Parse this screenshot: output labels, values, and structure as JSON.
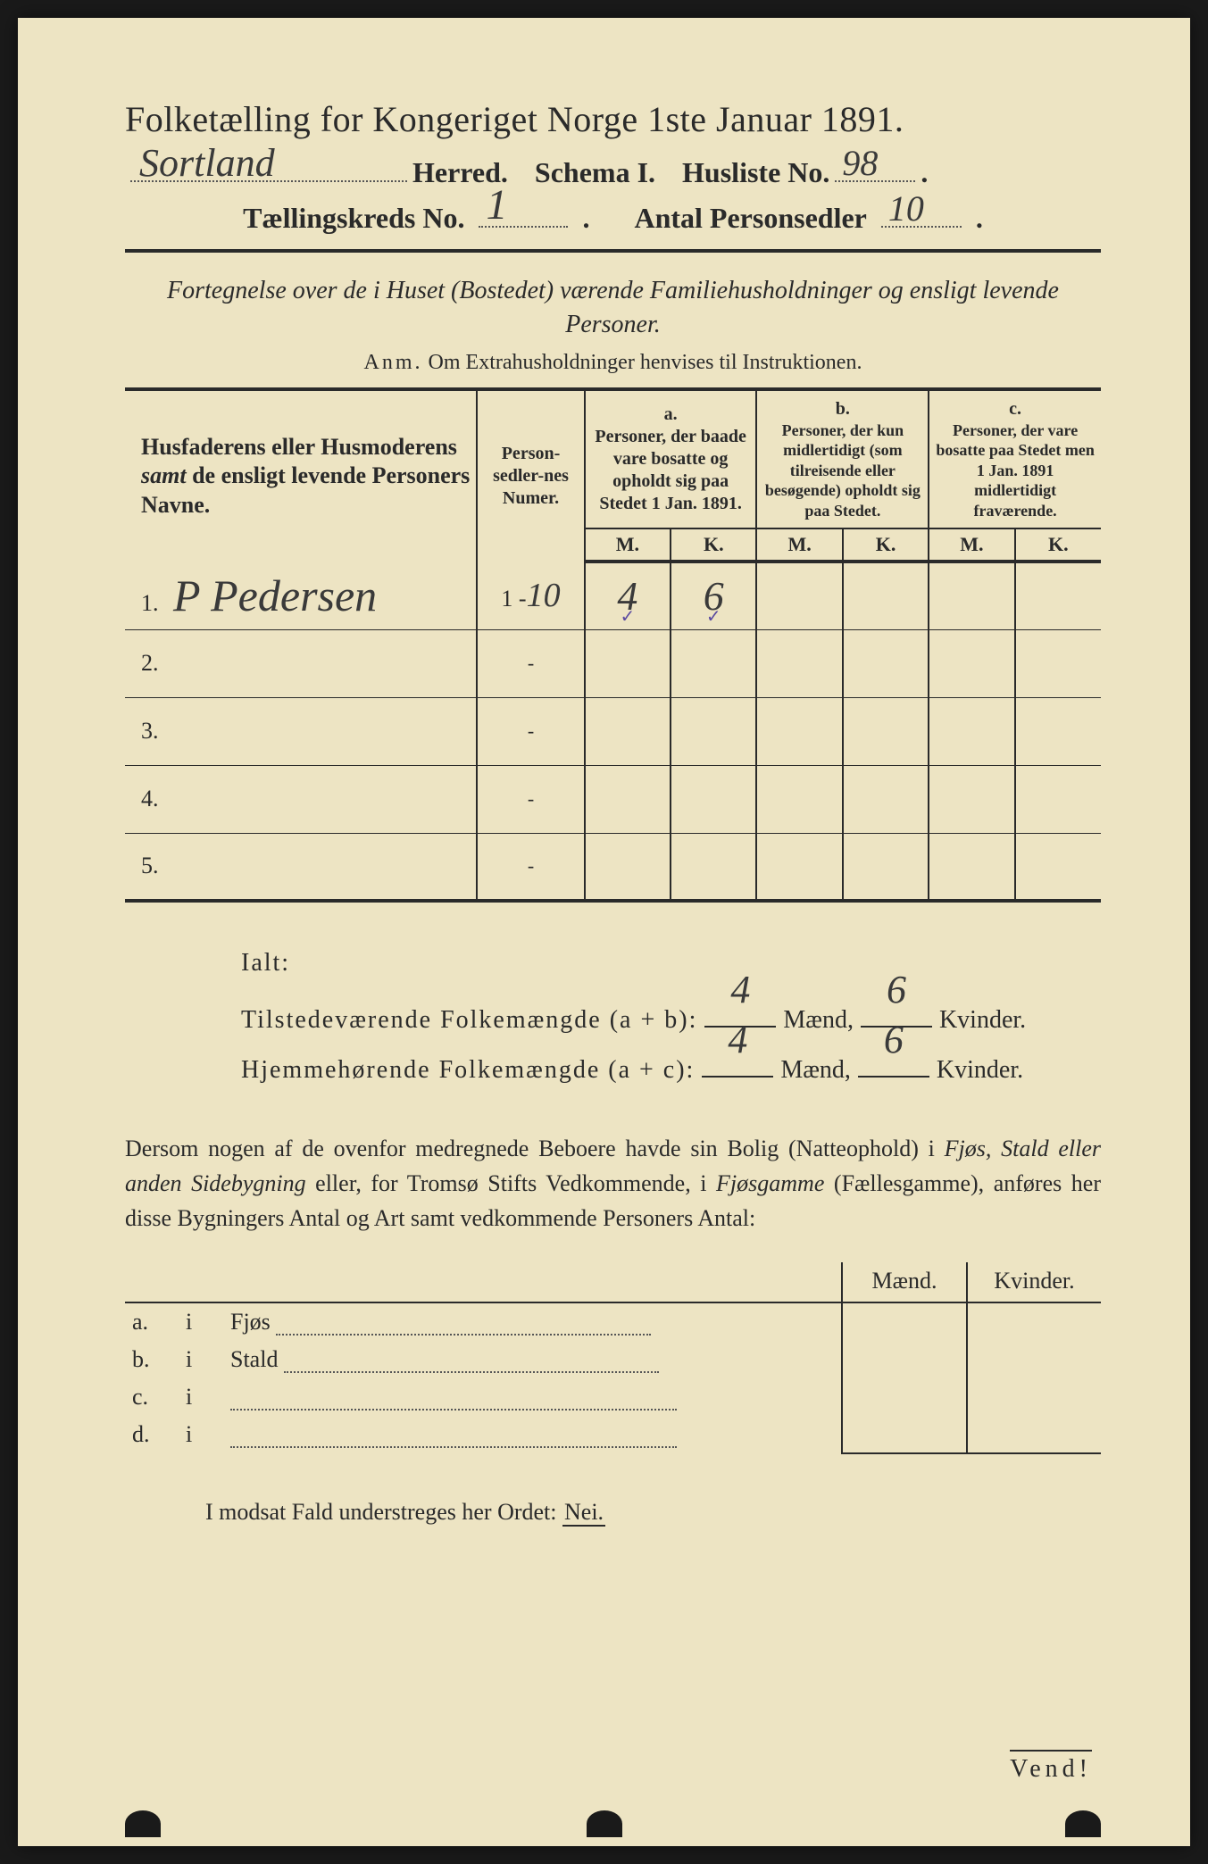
{
  "colors": {
    "paper": "#ede4c3",
    "ink": "#2a2a2a",
    "handwriting": "#3a3a3a",
    "tick": "#5a4aa0",
    "background": "#1a1a1a"
  },
  "header": {
    "title": "Folketælling for Kongeriget Norge 1ste Januar 1891.",
    "herred_hw": "Sortland",
    "herred_label": "Herred.",
    "schema_label": "Schema I.",
    "husliste_label": "Husliste No.",
    "husliste_hw": "98",
    "kreds_label": "Tællingskreds No.",
    "kreds_hw": "1",
    "antal_label": "Antal Personsedler",
    "antal_hw": "10"
  },
  "subtitle": {
    "line": "Fortegnelse over de i Huset (Bostedet) værende Familiehusholdninger og ensligt levende Personer.",
    "anm_prefix": "Anm.",
    "anm_text": "Om Extrahusholdninger henvises til Instruktionen."
  },
  "table": {
    "col1": "Husfaderens eller Husmoderens samt de ensligt levende Personers Navne.",
    "col2": "Person-sedler-nes Numer.",
    "col_a_label": "a.",
    "col_a": "Personer, der baade vare bosatte og opholdt sig paa Stedet 1 Jan. 1891.",
    "col_b_label": "b.",
    "col_b": "Personer, der kun midlertidigt (som tilreisende eller besøgende) opholdt sig paa Stedet.",
    "col_c_label": "c.",
    "col_c": "Personer, der vare bosatte paa Stedet men 1 Jan. 1891 midlertidigt fraværende.",
    "m": "M.",
    "k": "K.",
    "rows": [
      {
        "num": "1.",
        "name": "P Pedersen",
        "range": "1 - 10",
        "a_m": "4",
        "a_k": "6",
        "b_m": "",
        "b_k": "",
        "c_m": "",
        "c_k": "",
        "tick": true
      },
      {
        "num": "2.",
        "name": "",
        "range": "-",
        "a_m": "",
        "a_k": "",
        "b_m": "",
        "b_k": "",
        "c_m": "",
        "c_k": ""
      },
      {
        "num": "3.",
        "name": "",
        "range": "-",
        "a_m": "",
        "a_k": "",
        "b_m": "",
        "b_k": "",
        "c_m": "",
        "c_k": ""
      },
      {
        "num": "4.",
        "name": "",
        "range": "-",
        "a_m": "",
        "a_k": "",
        "b_m": "",
        "b_k": "",
        "c_m": "",
        "c_k": ""
      },
      {
        "num": "5.",
        "name": "",
        "range": "-",
        "a_m": "",
        "a_k": "",
        "b_m": "",
        "b_k": "",
        "c_m": "",
        "c_k": ""
      }
    ]
  },
  "totals": {
    "ialt": "Ialt:",
    "row1_label": "Tilstedeværende Folkemængde (a + b):",
    "row1_m": "4",
    "row1_k": "6",
    "row2_label": "Hjemmehørende Folkemængde (a + c):",
    "row2_m": "4",
    "row2_k": "6",
    "maend": "Mænd,",
    "kvinder": "Kvinder."
  },
  "paragraph": "Dersom nogen af de ovenfor medregnede Beboere havde sin Bolig (Natteophold) i Fjøs, Stald eller anden Sidebygning eller, for Tromsø Stifts Vedkommende, i Fjøsgamme (Fællesgamme), anføres her disse Bygningers Antal og Art samt vedkommende Personers Antal:",
  "lower_table": {
    "maend": "Mænd.",
    "kvinder": "Kvinder.",
    "rows": [
      {
        "letter": "a.",
        "i": "i",
        "label": "Fjøs"
      },
      {
        "letter": "b.",
        "i": "i",
        "label": "Stald"
      },
      {
        "letter": "c.",
        "i": "i",
        "label": ""
      },
      {
        "letter": "d.",
        "i": "i",
        "label": ""
      }
    ]
  },
  "nei_line": {
    "text": "I modsat Fald understreges her Ordet:",
    "nei": "Nei."
  },
  "vend": "Vend!"
}
